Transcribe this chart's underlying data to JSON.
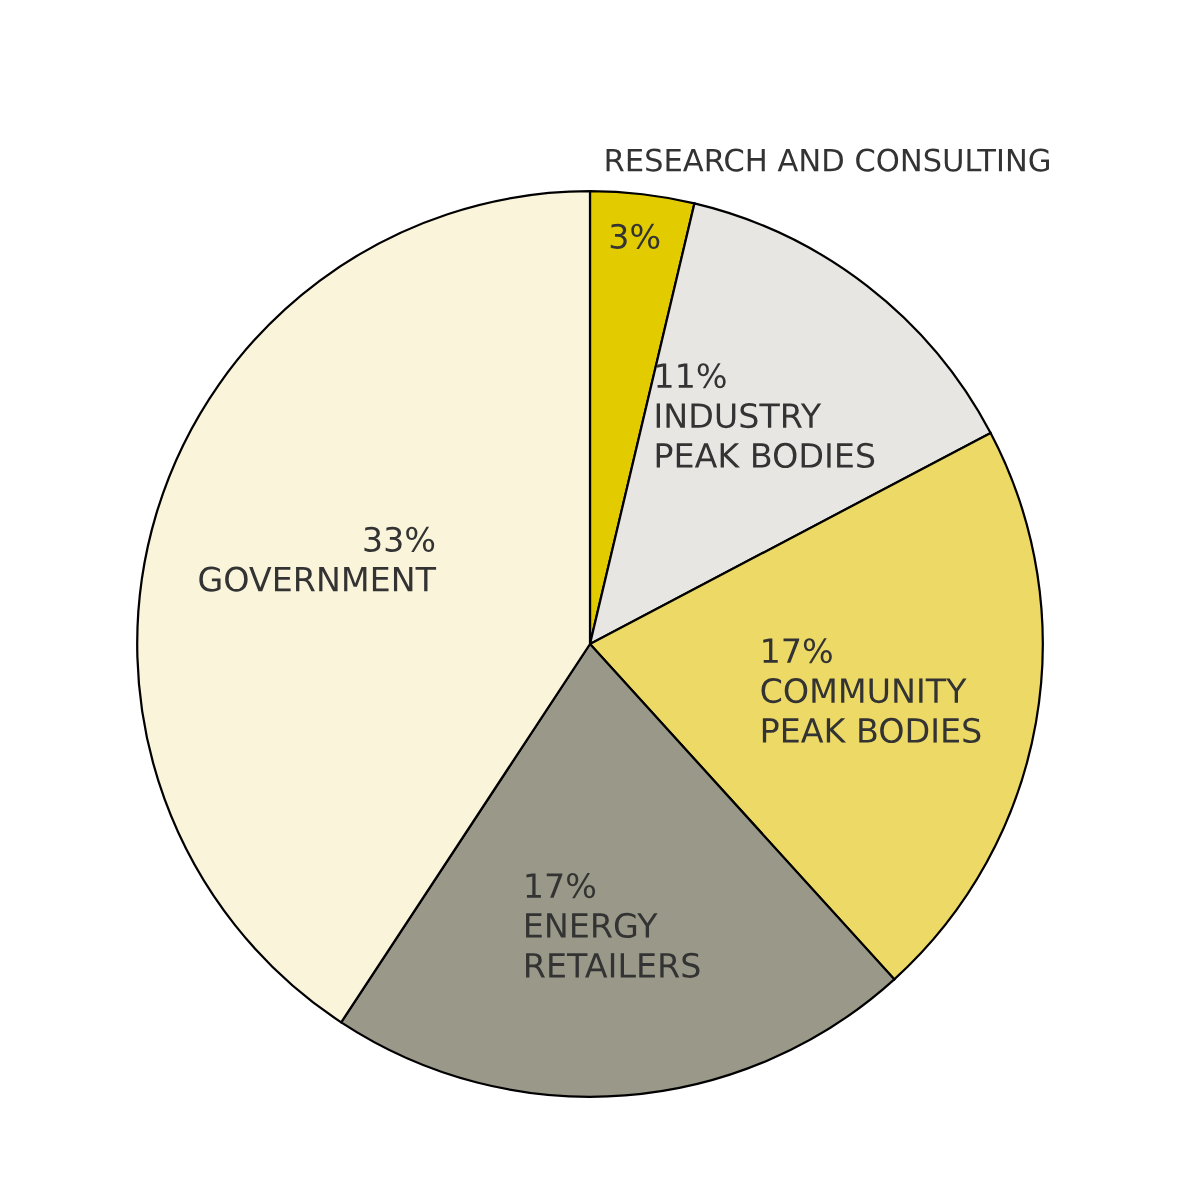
{
  "chart_data": {
    "type": "pie",
    "categories": [
      "RESEARCH AND CONSULTING",
      "INDUSTRY\nPEAK BODIES",
      "COMMUNITY\nPEAK BODIES",
      "ENERGY\nRETAILERS",
      "GOVERNMENT"
    ],
    "values": [
      3,
      11,
      17,
      17,
      33
    ],
    "value_labels": [
      "3%",
      "11%",
      "17%",
      "17%",
      "33%"
    ],
    "colors": [
      "#e2cc00",
      "#e8e6e3",
      "#ecd966",
      "#9a9888",
      "#faf4da"
    ]
  }
}
